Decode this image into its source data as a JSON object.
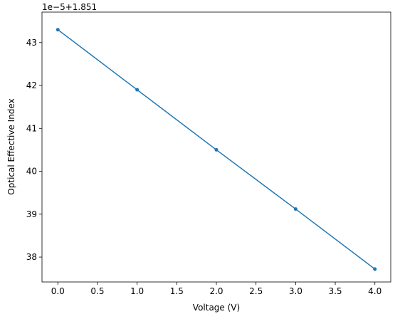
{
  "chart_data": {
    "type": "line",
    "x_label": "Voltage (V)",
    "y_label": "Optical Effective Index",
    "y_offset_label": "1e−5+1.851",
    "x": [
      0,
      1,
      2,
      3,
      4
    ],
    "series": [
      {
        "color": "#1f77b4",
        "values": [
          43.3,
          41.9,
          40.5,
          39.12,
          37.72
        ]
      }
    ],
    "xlim": [
      -0.2,
      4.2
    ],
    "xticks": [
      {
        "value": 0,
        "label": "0.0"
      },
      {
        "value": 0.5,
        "label": "0.5"
      },
      {
        "value": 1,
        "label": "1.0"
      },
      {
        "value": 1.5,
        "label": "1.5"
      },
      {
        "value": 2,
        "label": "2.0"
      },
      {
        "value": 2.5,
        "label": "2.5"
      },
      {
        "value": 3,
        "label": "3.0"
      },
      {
        "value": 3.5,
        "label": "3.5"
      },
      {
        "value": 4,
        "label": "4.0"
      }
    ],
    "ylim": [
      37.42,
      43.71
    ],
    "yticks": [
      38,
      39,
      40,
      41,
      42,
      43
    ],
    "grid": false
  }
}
